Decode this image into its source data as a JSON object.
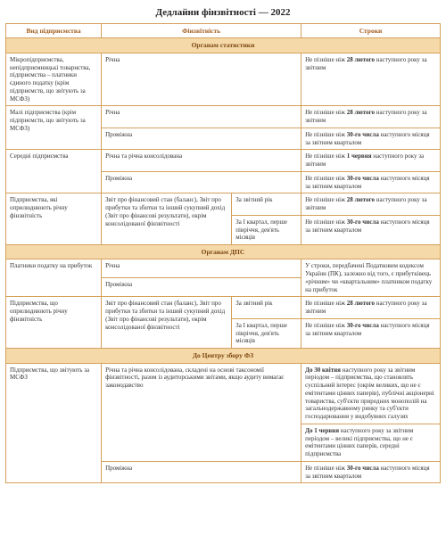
{
  "title": "Дедлайни фінзвітності — 2022",
  "headers": {
    "col1": "Вид підприємства",
    "col2": "Фінзвітність",
    "col4": "Строки"
  },
  "sections": [
    {
      "name": "Органам статистики",
      "rows": [
        {
          "c1": "Мікропідприємства, непідприємницькі товариства, підприємства – платники єдиного податку (крім підприємств, що звітують за МСФЗ)",
          "c2": "Річна",
          "c3": "",
          "c4": "Не пізніше ніж <b>28 лютого</b> наступного року за звітним"
        },
        {
          "c1": "Малі підприємства (крім підприємств, що звітують за МСФЗ)",
          "c2": "Річна",
          "c3": "",
          "c4": "Не пізніше ніж <b>28 лютого</b> наступного року за звітним",
          "rowspan1": 2
        },
        {
          "c2": "Проміжна",
          "c3": "",
          "c4": "Не пізніше ніж <b>30-го числа</b> наступного місяця за звітним кварталом"
        },
        {
          "c1": "Середні підприємства",
          "c2": "Річна та річна консолідована",
          "c3": "",
          "c4": "Не пізніше ніж <b>1 червня</b> наступного року за звітним",
          "rowspan1": 2
        },
        {
          "c2": "Проміжна",
          "c3": "",
          "c4": "Не пізніше ніж <b>30-го числа</b> наступного місяця за звітним кварталом"
        },
        {
          "c1": "Підприємства, які оприлюднюють річну фінзвітність",
          "c2": "Звіт про фінансовий стан (баланс), Звіт про прибутки та збитки та інший сукупний дохід (Звіт про фінансові результати), окрім консолідованої фінзвітності",
          "c3": "За звітний рік",
          "c4": "Не пізніше ніж <b>28 лютого</b> наступного року за звітним",
          "rowspan1": 2,
          "rowspan2": 2
        },
        {
          "c3": "За І квартал, перше півріччя, дев'ять місяців",
          "c4": "Не пізніше ніж <b>30-го числа</b> наступного місяця за звітним кварталом"
        }
      ]
    },
    {
      "name": "Органам ДПС",
      "rows": [
        {
          "c1": "Платники податку на прибуток",
          "c2": "Річна",
          "c3": "",
          "c4": "У строки, передбачені Податковим кодексом України (ПК), залежно від того, є прибутківець «річним» чи «квартальним» платником податку на прибуток",
          "rowspan1": 2,
          "rowspan4": 2
        },
        {
          "c2": "Проміжна",
          "c3": ""
        },
        {
          "c1": "Підприємства, що оприлюднюють річну фінзвітність",
          "c2": "Звіт про фінансовий стан (баланс), Звіт про прибутки та збитки та інший сукупний дохід (Звіт про фінансові результати), окрім консолідованої фінзвітності",
          "c3": "За звітний рік",
          "c4": "Не пізніше ніж <b>28 лютого</b> наступного року за звітним",
          "rowspan1": 2,
          "rowspan2": 2
        },
        {
          "c3": "За І квартал, перше півріччя, дев'ять місяців",
          "c4": "Не пізніше ніж <b>30-го числа</b> наступного місяця за звітним кварталом"
        }
      ]
    },
    {
      "name": "До Центру збору ФЗ",
      "rows": [
        {
          "c1": "Підприємства, що звітують за МСФЗ",
          "c2": "Річна та річна консолідована, складені на основі таксономії фінзвітності, разом із аудиторськими звітами, якщо аудиту вимагає законодавство",
          "c3": "",
          "c4": "<b>До 30 квітня</b> наступного року за звітним періодом – підприємства, що становлять суспільний інтерес (окрім великих, що не є емітентами цінних паперів), публічні акціонерні товариства, суб'єкти природних монополій на загальнодержавному ринку та суб'єкти господарювання у видобувних галузях",
          "rowspan1": 3,
          "rowspan2": 2
        },
        {
          "c3": "",
          "c4": "<b>До 1 червня</b> наступного року за звітним періодом – великі підприємства, що не є емітентами цінних паперів, середні підприємства"
        },
        {
          "c2": "Проміжна",
          "c3": "",
          "c4": "Не пізніше ніж <b>30-го числа</b> наступного місяця за звітним кварталом"
        }
      ]
    }
  ],
  "colors": {
    "border": "#d4a05a",
    "section_bg": "#f5d9a8",
    "header_text": "#a05a1a"
  }
}
